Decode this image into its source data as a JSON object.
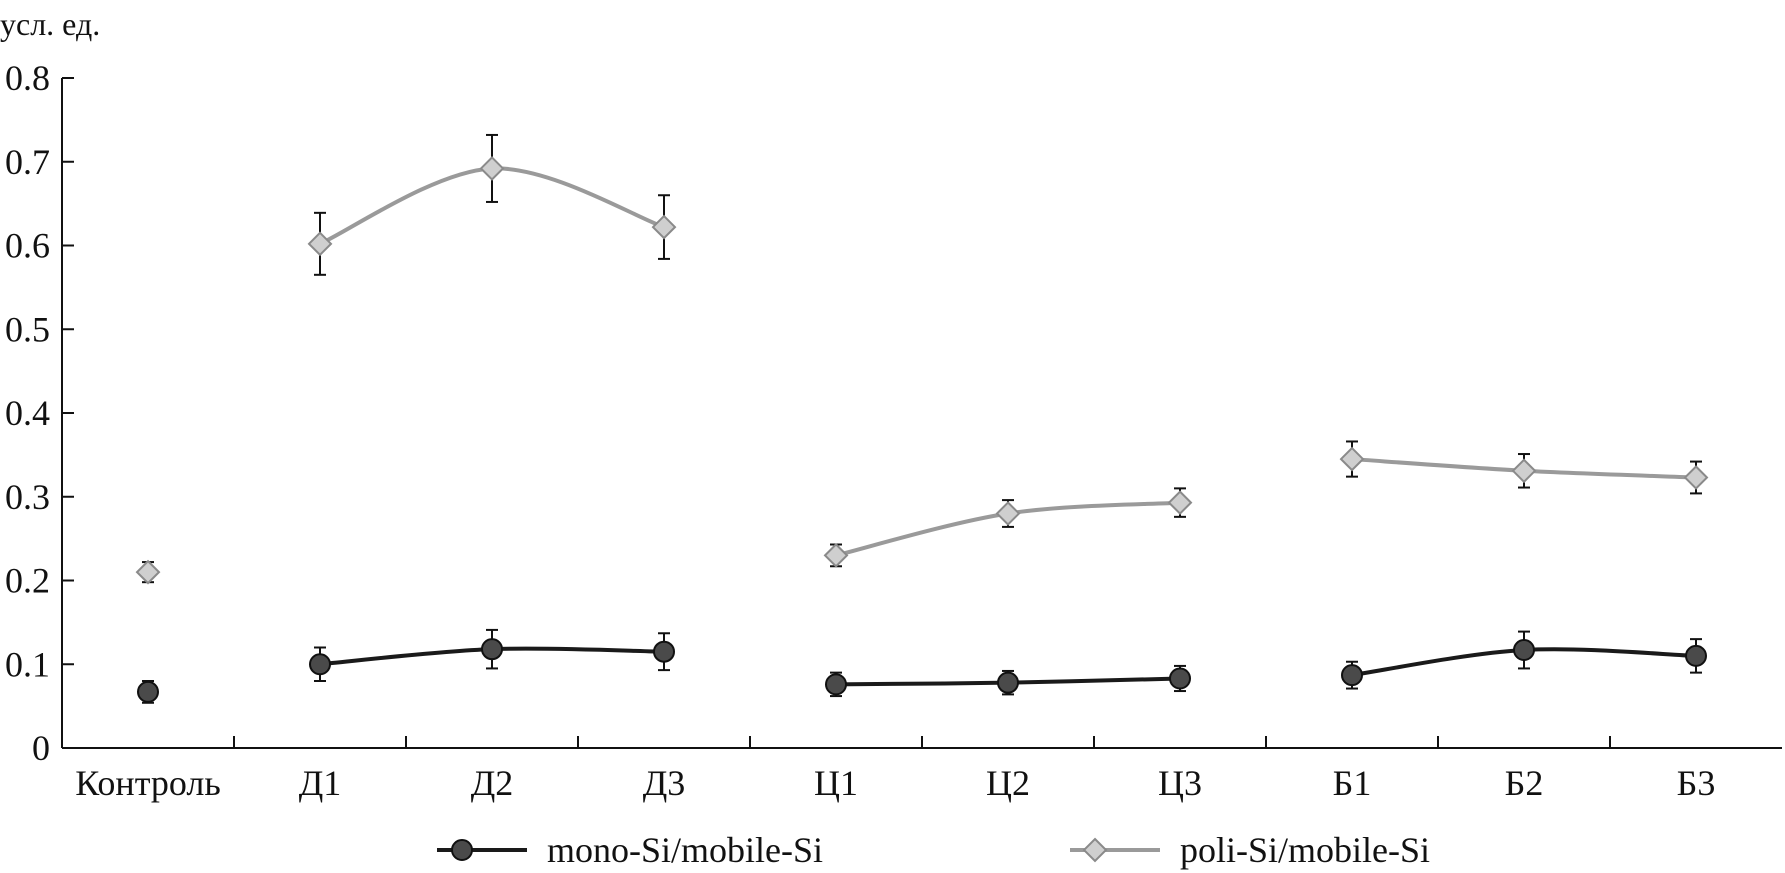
{
  "chart_data": {
    "type": "line",
    "ylabel": "усл. ед.",
    "ylim": [
      0,
      0.8
    ],
    "yticks": [
      "0",
      "0.1",
      "0.2",
      "0.3",
      "0.4",
      "0.5",
      "0.6",
      "0.7",
      "0.8"
    ],
    "ytick_values": [
      0,
      0.1,
      0.2,
      0.3,
      0.4,
      0.5,
      0.6,
      0.7,
      0.8
    ],
    "categories": [
      "Контроль",
      "Д1",
      "Д2",
      "Д3",
      "Ц1",
      "Ц2",
      "Ц3",
      "Б1",
      "Б2",
      "Б3"
    ],
    "groups": [
      [
        0
      ],
      [
        1,
        2,
        3
      ],
      [
        4,
        5,
        6
      ],
      [
        7,
        8,
        9
      ]
    ],
    "grid": false,
    "legend_position": "bottom",
    "series": [
      {
        "name": "mono-Si/mobile-Si",
        "marker": "circle",
        "line_color": "#1a1a1a",
        "marker_fill": "#4a4a4a",
        "values": [
          0.067,
          0.1,
          0.118,
          0.115,
          0.076,
          0.078,
          0.083,
          0.087,
          0.117,
          0.11
        ],
        "errors": [
          0.013,
          0.02,
          0.023,
          0.022,
          0.014,
          0.014,
          0.015,
          0.016,
          0.022,
          0.02
        ]
      },
      {
        "name": "poli-Si/mobile-Si",
        "marker": "diamond",
        "line_color": "#9a9a9a",
        "marker_fill": "#cfcfcf",
        "values": [
          0.21,
          0.602,
          0.692,
          0.622,
          0.23,
          0.28,
          0.293,
          0.345,
          0.331,
          0.323
        ],
        "errors": [
          0.012,
          0.037,
          0.04,
          0.038,
          0.013,
          0.016,
          0.017,
          0.021,
          0.02,
          0.019
        ]
      }
    ]
  }
}
